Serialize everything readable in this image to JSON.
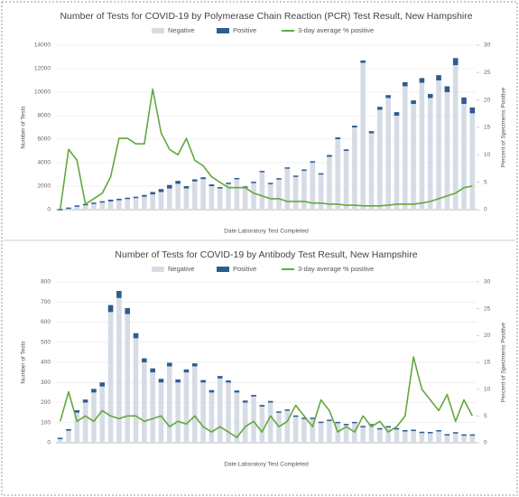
{
  "chart_data": [
    {
      "type": "bar",
      "title": "Number of Tests for COVID-19 by Polymerase Chain Reaction (PCR) Test Result, New Hampshire",
      "x_label": "Date Laboratory Test Completed",
      "y_label": "Number of Tests",
      "y2_label": "Percent of Specimens Positive",
      "ylim": [
        0,
        14000
      ],
      "yticks": [
        0,
        2000,
        4000,
        6000,
        8000,
        10000,
        12000,
        14000
      ],
      "y2lim": [
        0,
        30
      ],
      "y2ticks": [
        0,
        5,
        10,
        15,
        20,
        25,
        30
      ],
      "grid": true,
      "stacked": true,
      "series": [
        {
          "name": "Negative",
          "color": "#d6dce6",
          "values": [
            50,
            150,
            300,
            400,
            500,
            600,
            700,
            800,
            900,
            1000,
            1100,
            1300,
            1500,
            1800,
            2200,
            1800,
            2400,
            2600,
            2000,
            1800,
            2200,
            2600,
            1900,
            2300,
            3200,
            2200,
            2600,
            3500,
            2800,
            3300,
            4000,
            3000,
            4500,
            6000,
            5000,
            7000,
            12500,
            6500,
            8500,
            9500,
            8000,
            10500,
            9000,
            10800,
            9500,
            11000,
            10000,
            12300,
            9000,
            8200
          ]
        },
        {
          "name": "Positive",
          "color": "#2e5c8f",
          "values": [
            10,
            30,
            60,
            80,
            100,
            120,
            150,
            130,
            120,
            100,
            150,
            200,
            250,
            300,
            250,
            200,
            180,
            150,
            150,
            120,
            100,
            100,
            80,
            80,
            100,
            80,
            80,
            100,
            100,
            120,
            120,
            100,
            150,
            150,
            130,
            150,
            200,
            180,
            250,
            250,
            300,
            350,
            300,
            400,
            350,
            450,
            500,
            600,
            550,
            500
          ]
        },
        {
          "name": "3-day average % positive",
          "color": "#62a83d",
          "type": "line",
          "axis": "y2",
          "values": [
            0,
            11,
            9,
            1,
            2,
            3,
            6,
            13,
            13,
            12,
            12,
            22,
            14,
            11,
            10,
            13,
            9,
            8,
            6,
            5,
            4,
            4,
            4,
            3,
            2.5,
            2,
            2,
            1.5,
            1.5,
            1.5,
            1.2,
            1.2,
            1,
            1,
            0.8,
            0.8,
            0.7,
            0.7,
            0.7,
            0.8,
            1,
            1,
            1,
            1.2,
            1.5,
            2,
            2.5,
            3,
            4,
            4.3
          ]
        }
      ]
    },
    {
      "type": "bar",
      "title": "Number of Tests for COVID-19 by Antibody Test Result, New Hampshire",
      "x_label": "Date Laboratory Test Completed",
      "y_label": "Number of Tests",
      "y2_label": "Percent of Specimens Positive",
      "ylim": [
        0,
        800
      ],
      "yticks": [
        0,
        100,
        200,
        300,
        400,
        500,
        600,
        700,
        800
      ],
      "y2lim": [
        0,
        30
      ],
      "y2ticks": [
        0,
        5,
        10,
        15,
        20,
        25,
        30
      ],
      "grid": true,
      "stacked": true,
      "series": [
        {
          "name": "Negative",
          "color": "#d6dce6",
          "values": [
            20,
            60,
            150,
            200,
            250,
            280,
            650,
            720,
            640,
            520,
            400,
            350,
            300,
            380,
            300,
            350,
            380,
            300,
            250,
            320,
            300,
            250,
            200,
            230,
            180,
            200,
            150,
            160,
            130,
            120,
            120,
            100,
            110,
            100,
            90,
            100,
            80,
            90,
            70,
            80,
            70,
            60,
            60,
            50,
            50,
            60,
            40,
            50,
            40,
            40
          ]
        },
        {
          "name": "Positive",
          "color": "#2e5c8f",
          "values": [
            5,
            8,
            12,
            15,
            18,
            20,
            35,
            35,
            30,
            25,
            20,
            20,
            18,
            18,
            15,
            15,
            15,
            12,
            12,
            12,
            10,
            10,
            10,
            8,
            8,
            8,
            6,
            6,
            6,
            5,
            5,
            5,
            5,
            4,
            4,
            4,
            4,
            3,
            3,
            3,
            3,
            3,
            5,
            5,
            4,
            3,
            3,
            3,
            2,
            2
          ]
        },
        {
          "name": "3-day average % positive",
          "color": "#62a83d",
          "type": "line",
          "axis": "y2",
          "values": [
            4,
            9.5,
            4,
            5,
            4,
            6,
            5,
            4.5,
            5,
            5,
            4,
            4.5,
            5,
            3,
            4,
            3.5,
            5,
            3,
            2,
            3,
            2,
            1,
            3,
            4,
            2,
            5,
            3,
            4,
            7,
            5,
            3,
            8,
            6,
            2,
            3,
            2,
            5,
            3,
            4,
            2,
            3,
            5,
            16,
            10,
            8,
            6,
            9,
            4,
            8,
            5
          ]
        }
      ]
    }
  ]
}
